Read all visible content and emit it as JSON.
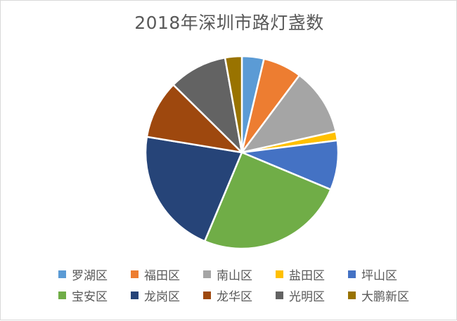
{
  "chart_data": {
    "type": "pie",
    "title": "2018年深圳市路灯盏数",
    "categories": [
      "罗湖区",
      "福田区",
      "南山区",
      "盐田区",
      "坪山区",
      "宝安区",
      "龙岗区",
      "龙华区",
      "光明区",
      "大鹏新区"
    ],
    "values": [
      3.7,
      6.5,
      11.3,
      1.5,
      8.3,
      25.0,
      21.3,
      9.8,
      9.8,
      2.8
    ],
    "colors": [
      "#5b9bd5",
      "#ed7d31",
      "#a5a5a5",
      "#ffc000",
      "#4472c4",
      "#70ad47",
      "#264478",
      "#9e480e",
      "#636363",
      "#997300"
    ],
    "legend": "bottom",
    "start": "12 o'clock, clockwise"
  }
}
